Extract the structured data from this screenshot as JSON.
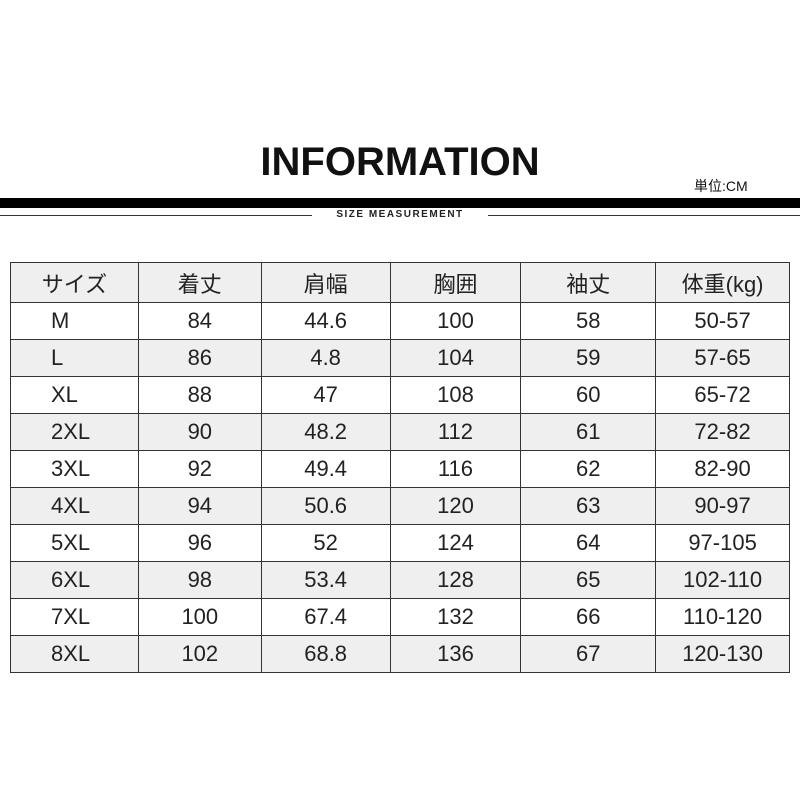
{
  "title": "INFORMATION",
  "unit": "単位:CM",
  "subtitle": "SIZE MEASUREMENT",
  "headers": [
    "サイズ",
    "着丈",
    "肩幅",
    "胸囲",
    "袖丈",
    "体重(kg)"
  ],
  "rows": [
    [
      "M",
      "84",
      "44.6",
      "100",
      "58",
      "50-57"
    ],
    [
      "L",
      "86",
      "4.8",
      "104",
      "59",
      "57-65"
    ],
    [
      "XL",
      "88",
      "47",
      "108",
      "60",
      "65-72"
    ],
    [
      "2XL",
      "90",
      "48.2",
      "112",
      "61",
      "72-82"
    ],
    [
      "3XL",
      "92",
      "49.4",
      "116",
      "62",
      "82-90"
    ],
    [
      "4XL",
      "94",
      "50.6",
      "120",
      "63",
      "90-97"
    ],
    [
      "5XL",
      "96",
      "52",
      "124",
      "64",
      "97-105"
    ],
    [
      "6XL",
      "98",
      "53.4",
      "128",
      "65",
      "102-110"
    ],
    [
      "7XL",
      "100",
      "67.4",
      "132",
      "66",
      "110-120"
    ],
    [
      "8XL",
      "102",
      "68.8",
      "136",
      "67",
      "120-130"
    ]
  ]
}
